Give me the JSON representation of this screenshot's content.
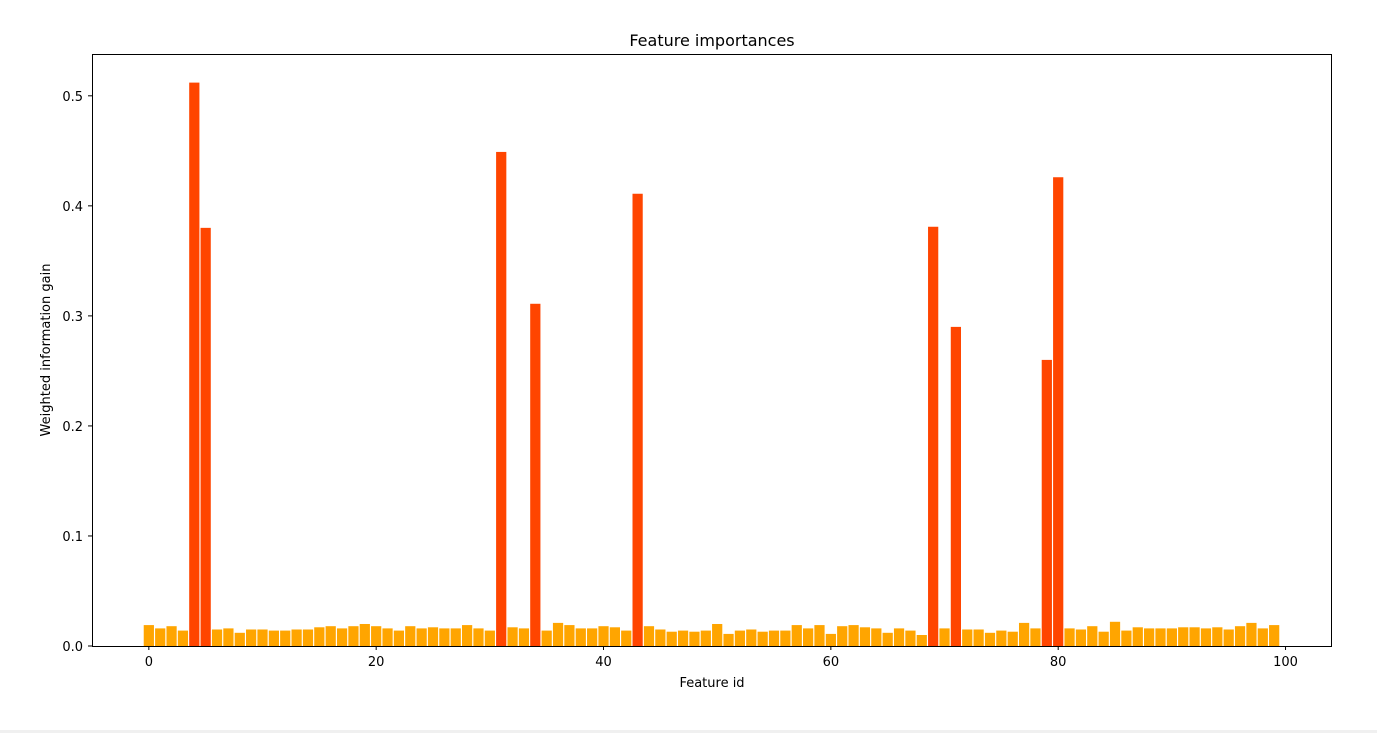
{
  "colors": {
    "normal_bar": "#FFA500",
    "important_bar": "#FF4500",
    "axes": "#000000",
    "background": "#FFFFFF"
  },
  "chart_data": {
    "type": "bar",
    "title": "Feature importances",
    "xlabel": "Feature id",
    "ylabel": "Weighted information gain",
    "xlim": [
      -5,
      104
    ],
    "ylim": [
      0,
      0.538
    ],
    "xticks": [
      0,
      20,
      40,
      60,
      80,
      100
    ],
    "yticks": [
      0.0,
      0.1,
      0.2,
      0.3,
      0.4,
      0.5
    ],
    "xtick_labels": [
      "0",
      "20",
      "40",
      "60",
      "80",
      "100"
    ],
    "ytick_labels": [
      "0.0",
      "0.1",
      "0.2",
      "0.3",
      "0.4",
      "0.5"
    ],
    "grid": false,
    "highlight_threshold": 0.2,
    "x": [
      0,
      1,
      2,
      3,
      4,
      5,
      6,
      7,
      8,
      9,
      10,
      11,
      12,
      13,
      14,
      15,
      16,
      17,
      18,
      19,
      20,
      21,
      22,
      23,
      24,
      25,
      26,
      27,
      28,
      29,
      30,
      31,
      32,
      33,
      34,
      35,
      36,
      37,
      38,
      39,
      40,
      41,
      42,
      43,
      44,
      45,
      46,
      47,
      48,
      49,
      50,
      51,
      52,
      53,
      54,
      55,
      56,
      57,
      58,
      59,
      60,
      61,
      62,
      63,
      64,
      65,
      66,
      67,
      68,
      69,
      70,
      71,
      72,
      73,
      74,
      75,
      76,
      77,
      78,
      79,
      80,
      81,
      82,
      83,
      84,
      85,
      86,
      87,
      88,
      89,
      90,
      91,
      92,
      93,
      94,
      95,
      96,
      97,
      98,
      99
    ],
    "values": [
      0.019,
      0.016,
      0.018,
      0.014,
      0.512,
      0.38,
      0.015,
      0.016,
      0.012,
      0.015,
      0.015,
      0.014,
      0.014,
      0.015,
      0.015,
      0.017,
      0.018,
      0.016,
      0.018,
      0.02,
      0.018,
      0.016,
      0.014,
      0.018,
      0.016,
      0.017,
      0.016,
      0.016,
      0.019,
      0.016,
      0.014,
      0.449,
      0.017,
      0.016,
      0.311,
      0.014,
      0.021,
      0.019,
      0.016,
      0.016,
      0.018,
      0.017,
      0.014,
      0.411,
      0.018,
      0.015,
      0.013,
      0.014,
      0.013,
      0.014,
      0.02,
      0.011,
      0.014,
      0.015,
      0.013,
      0.014,
      0.014,
      0.019,
      0.016,
      0.019,
      0.011,
      0.018,
      0.019,
      0.017,
      0.016,
      0.012,
      0.016,
      0.014,
      0.01,
      0.381,
      0.016,
      0.29,
      0.015,
      0.015,
      0.012,
      0.014,
      0.013,
      0.021,
      0.016,
      0.26,
      0.426,
      0.016,
      0.015,
      0.018,
      0.013,
      0.022,
      0.014,
      0.017,
      0.016,
      0.016,
      0.016,
      0.017,
      0.017,
      0.016,
      0.017,
      0.015,
      0.018,
      0.021,
      0.016,
      0.019
    ]
  }
}
